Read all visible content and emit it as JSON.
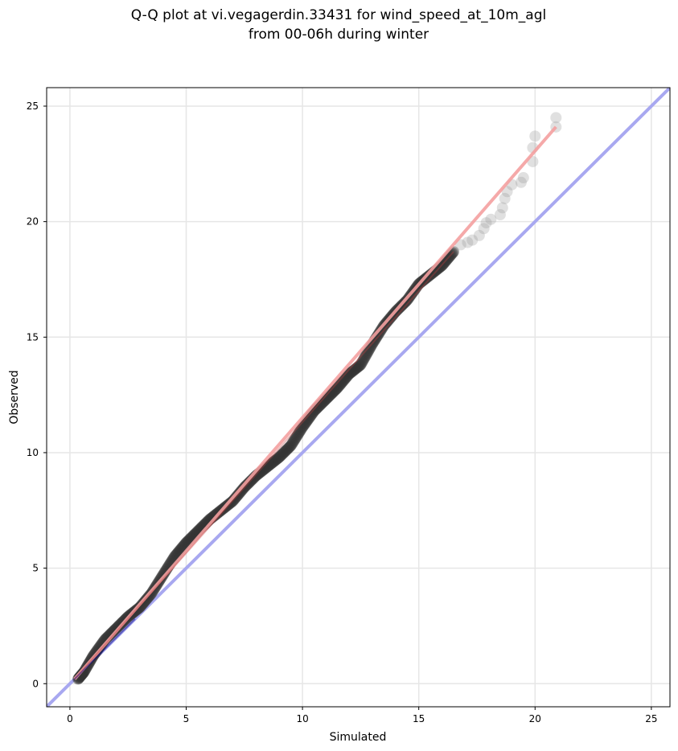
{
  "chart_data": {
    "type": "scatter",
    "title_lines": [
      "Q-Q plot at vi.vegagerdin.33431 for wind_speed_at_10m_agl",
      "from 00-06h during winter"
    ],
    "xlabel": "Simulated",
    "ylabel": "Observed",
    "xlim": [
      -1,
      25.8
    ],
    "ylim": [
      -1,
      25.8
    ],
    "xticks": [
      0,
      5,
      10,
      15,
      20,
      25
    ],
    "yticks": [
      0,
      5,
      10,
      15,
      20,
      25
    ],
    "grid": true,
    "colors": {
      "points": "#333333",
      "fit_line": "#f4a0a0",
      "fit_line_dense": "#c04040",
      "identity_line": "#a8a8f0",
      "identity_dense": "#000080",
      "grid": "#e6e6e6"
    },
    "identity_line": {
      "x": [
        -1,
        25.8
      ],
      "y": [
        -1,
        25.8
      ]
    },
    "fit_line": {
      "x": [
        0.2,
        20.9
      ],
      "y": [
        0.2,
        24.1
      ]
    },
    "quantile_curve": {
      "x": [
        0.35,
        0.6,
        1.0,
        1.5,
        2.0,
        2.5,
        3.0,
        3.5,
        4.0,
        4.5,
        5.0,
        5.5,
        6.0,
        6.5,
        7.0,
        7.5,
        8.0,
        8.5,
        9.0,
        9.5,
        10.0,
        10.5,
        11.0,
        11.5,
        12.0,
        12.5,
        13.0,
        13.5,
        14.0,
        14.5,
        15.0,
        15.5,
        16.0,
        16.5
      ],
      "y": [
        0.2,
        0.5,
        1.2,
        1.9,
        2.4,
        2.9,
        3.3,
        3.9,
        4.7,
        5.5,
        6.1,
        6.6,
        7.1,
        7.5,
        7.9,
        8.5,
        9.0,
        9.4,
        9.8,
        10.3,
        11.1,
        11.8,
        12.3,
        12.8,
        13.4,
        13.8,
        14.7,
        15.5,
        16.1,
        16.6,
        17.3,
        17.7,
        18.1,
        18.7
      ]
    },
    "tail_points": [
      {
        "x": 16.8,
        "y": 19.0
      },
      {
        "x": 17.1,
        "y": 19.1
      },
      {
        "x": 17.3,
        "y": 19.2
      },
      {
        "x": 17.6,
        "y": 19.4
      },
      {
        "x": 17.8,
        "y": 19.7
      },
      {
        "x": 17.9,
        "y": 19.95
      },
      {
        "x": 18.1,
        "y": 20.1
      },
      {
        "x": 18.5,
        "y": 20.3
      },
      {
        "x": 18.6,
        "y": 20.6
      },
      {
        "x": 18.7,
        "y": 21.0
      },
      {
        "x": 18.8,
        "y": 21.3
      },
      {
        "x": 19.0,
        "y": 21.6
      },
      {
        "x": 19.4,
        "y": 21.7
      },
      {
        "x": 19.5,
        "y": 21.9
      },
      {
        "x": 19.9,
        "y": 22.6
      },
      {
        "x": 19.9,
        "y": 23.2
      },
      {
        "x": 20.0,
        "y": 23.7
      },
      {
        "x": 20.9,
        "y": 24.1
      },
      {
        "x": 20.9,
        "y": 24.5
      }
    ]
  }
}
